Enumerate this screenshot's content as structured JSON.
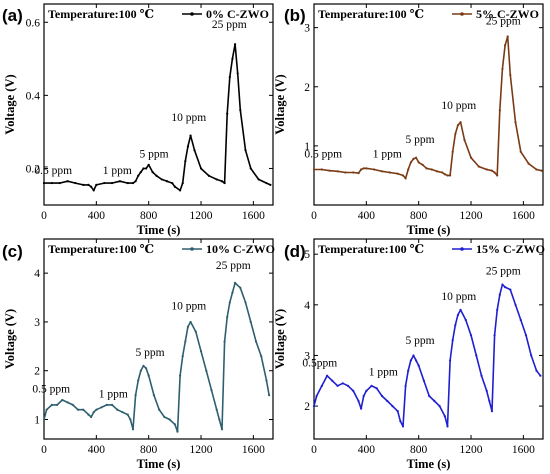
{
  "chart_data": [
    {
      "type": "line",
      "panel": "(a)",
      "legend_title": "Temperature:100 ℃",
      "series": [
        {
          "name": "0% C-ZWO",
          "color": "#000000",
          "x": [
            0,
            60,
            120,
            180,
            240,
            300,
            340,
            360,
            380,
            400,
            460,
            520,
            580,
            640,
            680,
            700,
            720,
            740,
            760,
            780,
            800,
            830,
            860,
            900,
            940,
            980,
            1000,
            1040,
            1060,
            1080,
            1100,
            1120,
            1150,
            1200,
            1260,
            1320,
            1360,
            1380,
            1400,
            1420,
            1440,
            1460,
            1480,
            1500,
            1540,
            1580,
            1640,
            1700,
            1730
          ],
          "y": [
            0.16,
            0.16,
            0.16,
            0.165,
            0.16,
            0.155,
            0.155,
            0.15,
            0.14,
            0.155,
            0.16,
            0.16,
            0.165,
            0.16,
            0.16,
            0.165,
            0.18,
            0.19,
            0.2,
            0.2,
            0.21,
            0.19,
            0.18,
            0.17,
            0.165,
            0.16,
            0.15,
            0.14,
            0.16,
            0.22,
            0.26,
            0.29,
            0.25,
            0.2,
            0.18,
            0.17,
            0.165,
            0.16,
            0.35,
            0.45,
            0.5,
            0.54,
            0.46,
            0.36,
            0.25,
            0.2,
            0.17,
            0.16,
            0.155
          ]
        }
      ],
      "annotations": [
        "0.5 ppm",
        "1 ppm",
        "5 ppm",
        "10 ppm",
        "25 ppm"
      ],
      "xlabel": "Time (s)",
      "ylabel": "Voltage (V)",
      "xlim": [
        0,
        1750
      ],
      "ylim": [
        0.1,
        0.65
      ],
      "xticks": [
        0,
        400,
        800,
        1200,
        1600
      ],
      "yticks": [
        0.2,
        0.4,
        0.6
      ]
    },
    {
      "type": "line",
      "panel": "(b)",
      "legend_title": "Temperature:100 ℃",
      "series": [
        {
          "name": "5% C-ZWO",
          "color": "#7a3b14",
          "x": [
            0,
            60,
            120,
            180,
            240,
            300,
            340,
            360,
            380,
            400,
            460,
            520,
            580,
            640,
            680,
            700,
            720,
            740,
            760,
            780,
            800,
            830,
            860,
            900,
            940,
            980,
            1000,
            1020,
            1040,
            1060,
            1080,
            1100,
            1120,
            1150,
            1200,
            1260,
            1320,
            1360,
            1380,
            1400,
            1420,
            1440,
            1460,
            1480,
            1500,
            1540,
            1580,
            1640,
            1700,
            1740
          ],
          "y": [
            0.6,
            0.6,
            0.58,
            0.57,
            0.55,
            0.55,
            0.54,
            0.6,
            0.62,
            0.62,
            0.6,
            0.57,
            0.55,
            0.53,
            0.5,
            0.45,
            0.6,
            0.72,
            0.78,
            0.8,
            0.72,
            0.68,
            0.62,
            0.6,
            0.57,
            0.55,
            0.52,
            0.5,
            0.5,
            0.9,
            1.2,
            1.35,
            1.4,
            1.1,
            0.8,
            0.65,
            0.6,
            0.58,
            0.55,
            0.5,
            1.6,
            2.3,
            2.7,
            2.85,
            2.2,
            1.4,
            0.9,
            0.7,
            0.6,
            0.58
          ]
        }
      ],
      "annotations": [
        "0.5 ppm",
        "1 ppm",
        "5 ppm",
        "10 ppm",
        "25 ppm"
      ],
      "xlabel": "Time (s)",
      "ylabel": "Voltage (V)",
      "xlim": [
        0,
        1750
      ],
      "ylim": [
        0,
        3.4
      ],
      "xticks": [
        0,
        400,
        800,
        1200,
        1600
      ],
      "yticks": [
        1,
        2,
        3
      ]
    },
    {
      "type": "line",
      "panel": "(c)",
      "legend_title": "Temperature:100 ℃",
      "series": [
        {
          "name": "10% C-ZWO",
          "color": "#2f5f6e",
          "x": [
            0,
            20,
            60,
            100,
            140,
            180,
            220,
            260,
            300,
            340,
            360,
            380,
            400,
            440,
            480,
            520,
            560,
            600,
            640,
            660,
            680,
            700,
            720,
            740,
            760,
            780,
            800,
            840,
            880,
            920,
            960,
            1000,
            1020,
            1040,
            1060,
            1080,
            1100,
            1120,
            1160,
            1200,
            1240,
            1280,
            1320,
            1340,
            1360,
            1380,
            1400,
            1420,
            1440,
            1460,
            1500,
            1540,
            1580,
            1620,
            1660,
            1700,
            1720
          ],
          "y": [
            1.0,
            1.2,
            1.3,
            1.3,
            1.4,
            1.35,
            1.3,
            1.2,
            1.2,
            1.1,
            1.05,
            1.15,
            1.2,
            1.25,
            1.3,
            1.3,
            1.2,
            1.15,
            1.1,
            1.0,
            0.8,
            1.5,
            1.8,
            2.0,
            2.1,
            2.05,
            1.9,
            1.5,
            1.2,
            1.05,
            1.0,
            0.9,
            0.75,
            1.9,
            2.3,
            2.6,
            2.9,
            3.0,
            2.8,
            2.4,
            2.0,
            1.6,
            1.2,
            1.0,
            0.8,
            2.6,
            3.1,
            3.4,
            3.6,
            3.8,
            3.7,
            3.4,
            3.0,
            2.6,
            2.3,
            1.8,
            1.5
          ]
        }
      ],
      "annotations": [
        "0.5 ppm",
        "1 ppm",
        "5 ppm",
        "10 ppm",
        "25 ppm"
      ],
      "xlabel": "Time (s)",
      "ylabel": "Voltage (V)",
      "xlim": [
        0,
        1750
      ],
      "ylim": [
        0.6,
        4.7
      ],
      "xticks": [
        0,
        400,
        800,
        1200,
        1600
      ],
      "yticks": [
        1,
        2,
        3,
        4
      ]
    },
    {
      "type": "line",
      "panel": "(d)",
      "legend_title": "Temperature:100 ℃",
      "series": [
        {
          "name": "15% C-ZWO",
          "color": "#1f1fd1",
          "x": [
            0,
            20,
            60,
            100,
            140,
            180,
            220,
            260,
            300,
            340,
            360,
            380,
            400,
            440,
            480,
            520,
            560,
            600,
            640,
            660,
            680,
            700,
            720,
            740,
            760,
            780,
            800,
            840,
            880,
            920,
            960,
            1000,
            1020,
            1040,
            1060,
            1080,
            1100,
            1120,
            1160,
            1200,
            1240,
            1280,
            1320,
            1340,
            1360,
            1380,
            1400,
            1420,
            1440,
            1460,
            1500,
            1540,
            1580,
            1620,
            1660,
            1700,
            1730
          ],
          "y": [
            2.0,
            2.2,
            2.4,
            2.6,
            2.5,
            2.4,
            2.45,
            2.4,
            2.3,
            2.1,
            1.95,
            2.2,
            2.3,
            2.4,
            2.35,
            2.2,
            2.1,
            2.0,
            1.9,
            1.7,
            1.6,
            2.4,
            2.7,
            2.9,
            3.0,
            2.9,
            2.8,
            2.5,
            2.2,
            2.1,
            2.0,
            1.8,
            1.6,
            2.9,
            3.3,
            3.6,
            3.8,
            3.9,
            3.7,
            3.4,
            3.0,
            2.6,
            2.3,
            2.1,
            1.9,
            3.4,
            3.9,
            4.2,
            4.4,
            4.35,
            4.3,
            4.0,
            3.7,
            3.4,
            3.0,
            2.7,
            2.6
          ]
        }
      ],
      "annotations": [
        "0.5ppm",
        "1 ppm",
        "5 ppm",
        "10 ppm",
        "25 ppm"
      ],
      "xlabel": "Time (s)",
      "ylabel": "Voltage (V)",
      "xlim": [
        0,
        1750
      ],
      "ylim": [
        1.35,
        5.3
      ],
      "xticks": [
        0,
        400,
        800,
        1200,
        1600
      ],
      "yticks": [
        2,
        3,
        4,
        5
      ]
    }
  ]
}
